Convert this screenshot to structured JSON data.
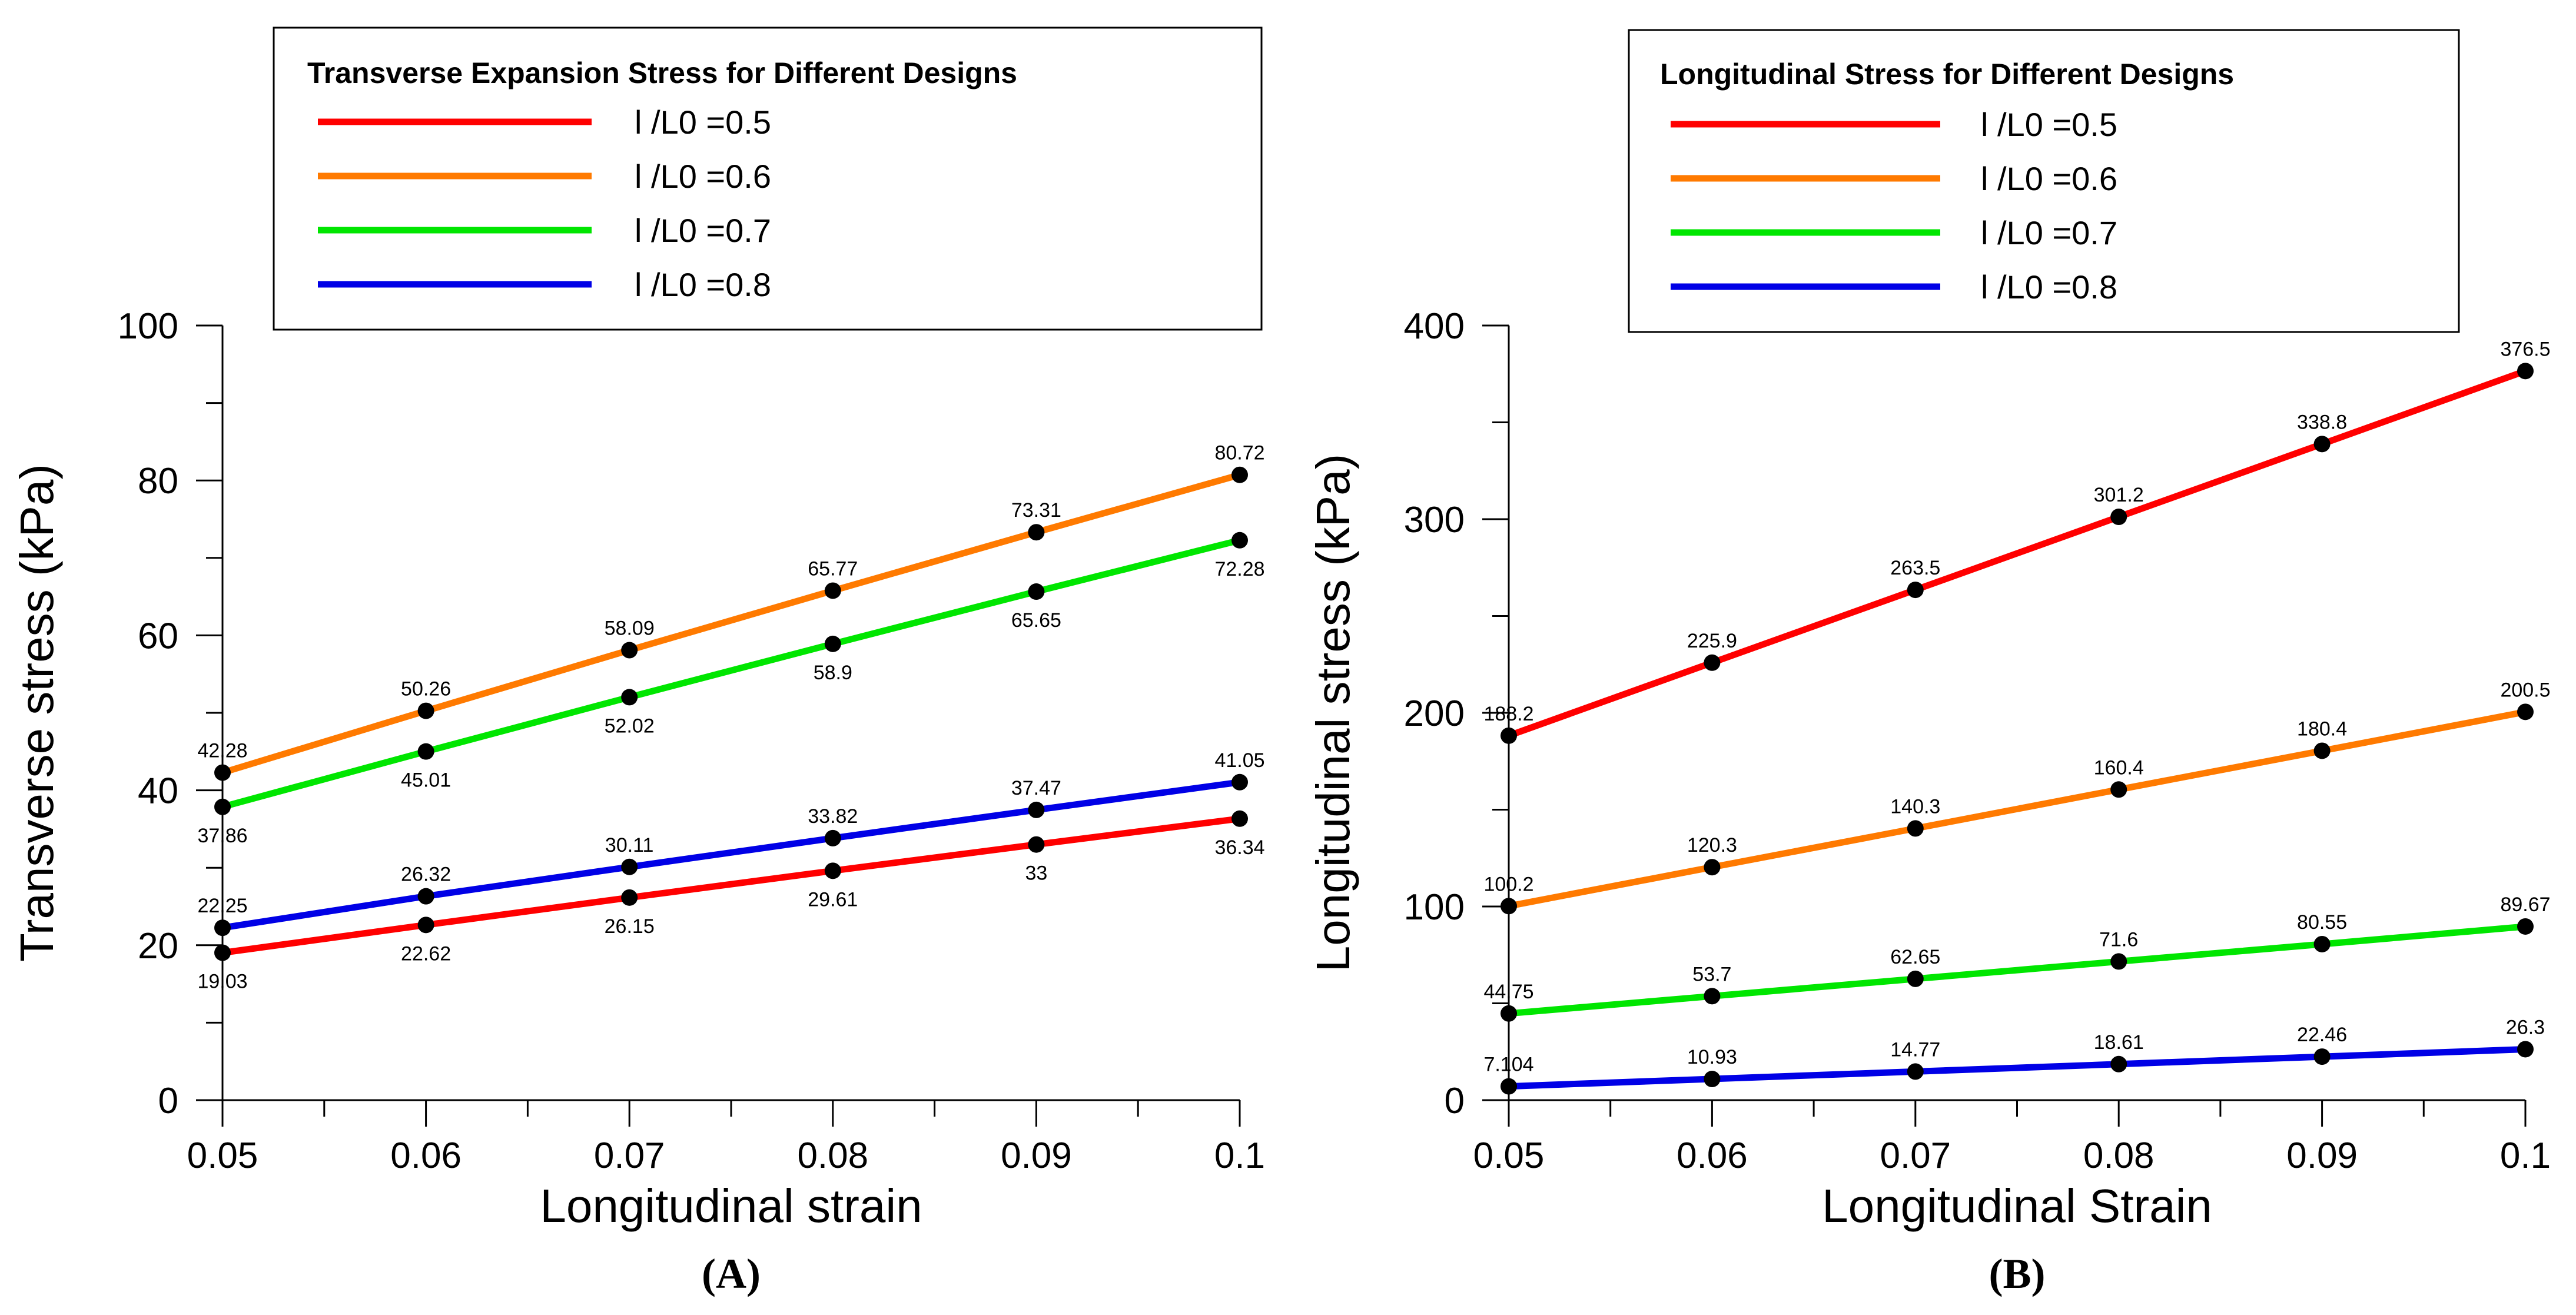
{
  "chart_data": [
    {
      "id": "A",
      "type": "line",
      "panel_label": "(A)",
      "legend_title": "Transverse Expansion Stress for Different Designs",
      "xlabel": "Longitudinal strain",
      "ylabel": "Transverse stress (kPa)",
      "xlim": [
        0.05,
        0.1
      ],
      "ylim": [
        0,
        100
      ],
      "xticks": [
        "0.05",
        "0.06",
        "0.07",
        "0.08",
        "0.09",
        "0.1"
      ],
      "yticks": [
        "0",
        "20",
        "40",
        "60",
        "80",
        "100"
      ],
      "x": [
        0.05,
        0.06,
        0.07,
        0.08,
        0.09,
        0.1
      ],
      "series": [
        {
          "name": "l /L0  =0.5",
          "color": "#ff0000",
          "values": [
            19.03,
            22.62,
            26.15,
            29.61,
            33,
            36.34
          ],
          "labels": [
            "19.03",
            "22.62",
            "26.15",
            "29.61",
            "33",
            "36.34"
          ],
          "label_pos": "below"
        },
        {
          "name": "l /L0  =0.6",
          "color": "#ff7a00",
          "values": [
            42.28,
            50.26,
            58.09,
            65.77,
            73.31,
            80.72
          ],
          "labels": [
            "42.28",
            "50.26",
            "58.09",
            "65.77",
            "73.31",
            "80.72"
          ],
          "label_pos": "above"
        },
        {
          "name": "l /L0  =0.7",
          "color": "#00e600",
          "values": [
            37.86,
            45.01,
            52.02,
            58.9,
            65.65,
            72.28
          ],
          "labels": [
            "37.86",
            "45.01",
            "52.02",
            "58.9",
            "65.65",
            "72.28"
          ],
          "label_pos": "below"
        },
        {
          "name": "l /L0  =0.8",
          "color": "#0000e6",
          "values": [
            22.25,
            26.32,
            30.11,
            33.82,
            37.47,
            41.05
          ],
          "labels": [
            "22.25",
            "26.32",
            "30.11",
            "33.82",
            "37.47",
            "41.05"
          ],
          "label_pos": "above"
        }
      ]
    },
    {
      "id": "B",
      "type": "line",
      "panel_label": "(B)",
      "legend_title": "Longitudinal Stress for Different Designs",
      "xlabel": "Longitudinal Strain",
      "ylabel": "Longitudinal stress (kPa)",
      "xlim": [
        0.05,
        0.1
      ],
      "ylim": [
        0,
        400
      ],
      "xticks": [
        "0.05",
        "0.06",
        "0.07",
        "0.08",
        "0.09",
        "0.1"
      ],
      "yticks": [
        "0",
        "100",
        "200",
        "300",
        "400"
      ],
      "x": [
        0.05,
        0.06,
        0.07,
        0.08,
        0.09,
        0.1
      ],
      "series": [
        {
          "name": "l /L0 =0.5",
          "color": "#ff0000",
          "values": [
            188.2,
            225.9,
            263.5,
            301.2,
            338.8,
            376.5
          ],
          "labels": [
            "188.2",
            "225.9",
            "263.5",
            "301.2",
            "338.8",
            "376.5"
          ],
          "label_pos": "above"
        },
        {
          "name": "l /L0 =0.6",
          "color": "#ff7a00",
          "values": [
            100.2,
            120.3,
            140.3,
            160.4,
            180.4,
            200.5
          ],
          "labels": [
            "100.2",
            "120.3",
            "140.3",
            "160.4",
            "180.4",
            "200.5"
          ],
          "label_pos": "above"
        },
        {
          "name": "l /L0 =0.7",
          "color": "#00e600",
          "values": [
            44.75,
            53.7,
            62.65,
            71.6,
            80.55,
            89.67
          ],
          "labels": [
            "44.75",
            "53.7",
            "62.65",
            "71.6",
            "80.55",
            "89.67"
          ],
          "label_pos": "above"
        },
        {
          "name": "l /L0 =0.8",
          "color": "#0000e6",
          "values": [
            7.104,
            10.93,
            14.77,
            18.61,
            22.46,
            26.3
          ],
          "labels": [
            "7.104",
            "10.93",
            "14.77",
            "18.61",
            "22.46",
            "26.3"
          ],
          "label_pos": "above"
        }
      ]
    }
  ]
}
